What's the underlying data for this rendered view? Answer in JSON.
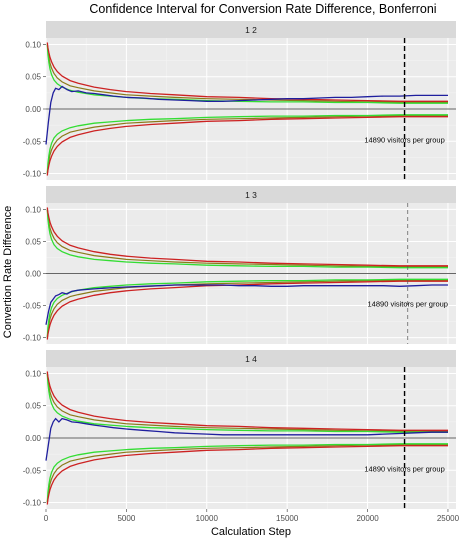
{
  "chart_data": {
    "type": "line",
    "title": "Confidence Interval for Conversion Rate Difference, Bonferroni",
    "xlabel": "Calculation Step",
    "ylabel": "Convertion Rate Difference",
    "xlim": [
      0,
      25500
    ],
    "ylim": [
      -0.11,
      0.11
    ],
    "x_ticks": [
      0,
      5000,
      10000,
      15000,
      20000,
      25000
    ],
    "y_ticks": [
      -0.1,
      -0.05,
      0.0,
      0.05,
      0.1
    ],
    "y_tick_labels": [
      "-0.10",
      "-0.05",
      "0.00",
      "0.05",
      "0.10"
    ],
    "grid": true,
    "series_colors": {
      "difference": "#1f1f9e",
      "bound_red": "#cc2222",
      "bound_green": "#33dd33",
      "bound_olive": "#8a7a1a"
    },
    "panels": [
      {
        "strip": "1 2",
        "vline_x": 22300,
        "vline_style": "heavy",
        "annotation": "14890 visitors per group",
        "annotation_y": -0.047,
        "difference": {
          "x": [
            0,
            150,
            300,
            450,
            600,
            800,
            1000,
            1300,
            1600,
            2000,
            2500,
            3000,
            3600,
            4200,
            5000,
            6000,
            7000,
            8000,
            9000,
            10000,
            11000,
            12000,
            13000,
            14000,
            15000,
            16000,
            17000,
            18000,
            19000,
            20000,
            21000,
            22000,
            23000,
            24000,
            25000
          ],
          "y": [
            -0.055,
            -0.02,
            0.01,
            0.025,
            0.032,
            0.03,
            0.035,
            0.03,
            0.027,
            0.028,
            0.025,
            0.024,
            0.022,
            0.02,
            0.018,
            0.017,
            0.015,
            0.014,
            0.013,
            0.012,
            0.012,
            0.013,
            0.014,
            0.015,
            0.016,
            0.016,
            0.017,
            0.018,
            0.018,
            0.019,
            0.02,
            0.02,
            0.021,
            0.021,
            0.021
          ]
        }
      },
      {
        "strip": "1 3",
        "vline_x": 22500,
        "vline_style": "light",
        "annotation": "14890 visitors per group",
        "annotation_y": -0.047,
        "difference": {
          "x": [
            0,
            150,
            300,
            450,
            600,
            800,
            1000,
            1300,
            1600,
            2000,
            2500,
            3000,
            3600,
            4200,
            5000,
            6000,
            7000,
            8000,
            9000,
            10000,
            11000,
            12000,
            13000,
            14000,
            15000,
            16000,
            17000,
            18000,
            19000,
            20000,
            21000,
            22000,
            23000,
            24000,
            25000
          ],
          "y": [
            -0.08,
            -0.06,
            -0.045,
            -0.04,
            -0.035,
            -0.033,
            -0.03,
            -0.032,
            -0.028,
            -0.026,
            -0.025,
            -0.024,
            -0.023,
            -0.022,
            -0.021,
            -0.02,
            -0.019,
            -0.018,
            -0.018,
            -0.018,
            -0.018,
            -0.019,
            -0.019,
            -0.02,
            -0.02,
            -0.019,
            -0.019,
            -0.019,
            -0.019,
            -0.019,
            -0.019,
            -0.02,
            -0.019,
            -0.018,
            -0.018
          ]
        }
      },
      {
        "strip": "1 4",
        "vline_x": 22300,
        "vline_style": "heavy",
        "annotation": "14890 visitors per group",
        "annotation_y": -0.047,
        "difference": {
          "x": [
            0,
            150,
            300,
            450,
            600,
            800,
            1000,
            1300,
            1600,
            2000,
            2500,
            3000,
            3600,
            4200,
            5000,
            6000,
            7000,
            8000,
            9000,
            10000,
            11000,
            12000,
            13000,
            14000,
            15000,
            16000,
            17000,
            18000,
            19000,
            20000,
            21000,
            22000,
            23000,
            24000,
            25000
          ],
          "y": [
            -0.035,
            -0.01,
            0.015,
            0.025,
            0.03,
            0.025,
            0.03,
            0.028,
            0.025,
            0.024,
            0.022,
            0.02,
            0.018,
            0.016,
            0.014,
            0.012,
            0.01,
            0.008,
            0.007,
            0.006,
            0.005,
            0.005,
            0.005,
            0.005,
            0.005,
            0.005,
            0.005,
            0.005,
            0.005,
            0.005,
            0.006,
            0.007,
            0.008,
            0.009,
            0.009
          ]
        }
      }
    ],
    "bounds": {
      "x": [
        80,
        120,
        180,
        250,
        350,
        500,
        700,
        1000,
        1500,
        2000,
        3000,
        4000,
        5000,
        6500,
        8000,
        10000,
        12000,
        14000,
        16000,
        18000,
        20000,
        22000,
        24000,
        25000
      ],
      "red_upper": [
        0.103,
        0.095,
        0.087,
        0.08,
        0.073,
        0.065,
        0.058,
        0.051,
        0.044,
        0.04,
        0.034,
        0.03,
        0.027,
        0.024,
        0.022,
        0.019,
        0.018,
        0.016,
        0.015,
        0.014,
        0.013,
        0.012,
        0.012,
        0.012
      ],
      "green_upper": [
        0.1,
        0.085,
        0.072,
        0.062,
        0.053,
        0.045,
        0.039,
        0.034,
        0.029,
        0.026,
        0.022,
        0.02,
        0.018,
        0.016,
        0.015,
        0.013,
        0.012,
        0.011,
        0.011,
        0.01,
        0.01,
        0.009,
        0.009,
        0.009
      ],
      "olive_upper": [
        0.1,
        0.09,
        0.08,
        0.071,
        0.063,
        0.055,
        0.048,
        0.042,
        0.036,
        0.033,
        0.028,
        0.025,
        0.022,
        0.02,
        0.018,
        0.016,
        0.015,
        0.014,
        0.013,
        0.012,
        0.011,
        0.011,
        0.01,
        0.01
      ]
    }
  }
}
